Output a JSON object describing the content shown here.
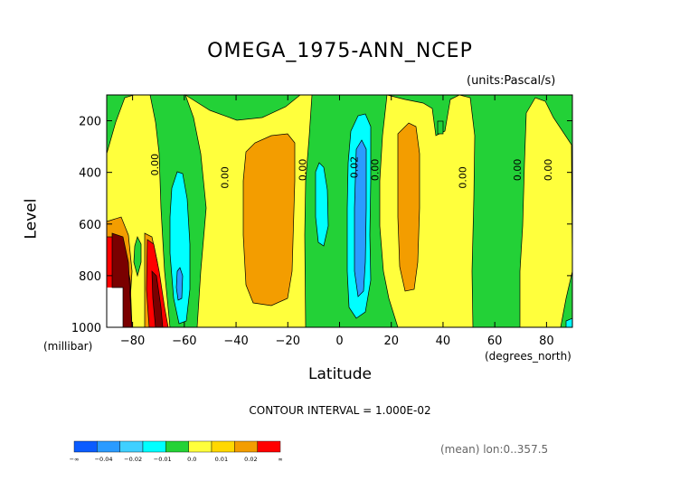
{
  "page": {
    "title": "OMEGA_1975-ANN_NCEP",
    "units_label": "(units:Pascal/s)",
    "contour_interval": "CONTOUR INTERVAL = 1.000E-02",
    "mean_label": "(mean) lon:0..357.5"
  },
  "chart_data": {
    "type": "heatmap",
    "title": "OMEGA_1975-ANN_NCEP",
    "units": "units:Pascal/s",
    "xlabel": "Latitude",
    "xunits": "(degrees_north)",
    "ylabel": "Level",
    "yunits": "(millibar)",
    "xlim": [
      -90,
      90
    ],
    "ylim": [
      1000,
      100
    ],
    "x_ticks": [
      -80,
      -60,
      -40,
      -20,
      0,
      20,
      40,
      60,
      80
    ],
    "y_ticks": [
      200,
      400,
      600,
      800,
      1000
    ],
    "contour_interval": 0.01,
    "contour_labels": [
      {
        "text": "0.00",
        "lat": -70,
        "level": 370
      },
      {
        "text": "0.00",
        "lat": -43,
        "level": 420
      },
      {
        "text": "0.00",
        "lat": -13,
        "level": 390
      },
      {
        "text": "0.02",
        "lat": 7,
        "level": 380
      },
      {
        "text": "0.00",
        "lat": 15,
        "level": 390
      },
      {
        "text": "0.00",
        "lat": 49,
        "level": 420
      },
      {
        "text": "0.00",
        "lat": 70,
        "level": 390
      },
      {
        "text": "0.00",
        "lat": 82,
        "level": 390
      }
    ],
    "colorbar": {
      "colors": [
        "#0b5cff",
        "#2b9bff",
        "#3fd0ff",
        "#00ffff",
        "#24d236",
        "#ffff3c",
        "#ffd800",
        "#f39d00",
        "#ff0000"
      ],
      "labels": [
        "-∞",
        "-0.04",
        "-0.02",
        "-0.01",
        "0.0",
        "0.01",
        "0.02",
        "∞"
      ]
    }
  }
}
